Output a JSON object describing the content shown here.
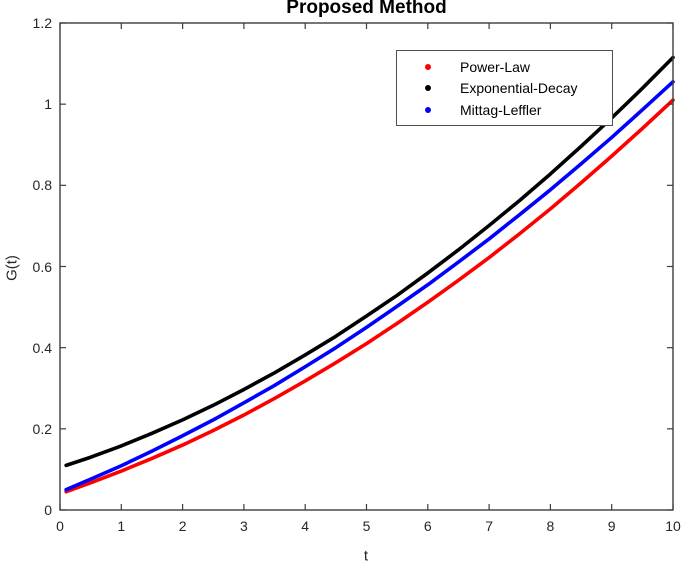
{
  "figure": {
    "background": "#ffffff"
  },
  "chart_data": {
    "type": "line",
    "title": "Proposed Method",
    "xlabel": "t",
    "ylabel": "G(t)",
    "xlim": [
      0,
      10
    ],
    "ylim": [
      0,
      1.2
    ],
    "xticks": [
      0,
      1,
      2,
      3,
      4,
      5,
      6,
      7,
      8,
      9,
      10
    ],
    "xtick_labels": [
      "0",
      "1",
      "2",
      "3",
      "4",
      "5",
      "6",
      "7",
      "8",
      "9",
      "10"
    ],
    "yticks": [
      0,
      0.2,
      0.4,
      0.6,
      0.8,
      1.0,
      1.2
    ],
    "ytick_labels": [
      "0",
      "0.2",
      "0.4",
      "0.6",
      "0.8",
      "1",
      "1.2"
    ],
    "grid": false,
    "box": true,
    "axis_color": "#3d3d3d",
    "legend": {
      "position": "upper-right-inside",
      "border_color": "#4f4f4f",
      "background": "#ffffff",
      "marker": "dot"
    },
    "x": [
      0.1,
      0.5,
      1,
      1.5,
      2,
      2.5,
      3,
      3.5,
      4,
      4.5,
      5,
      5.5,
      6,
      6.5,
      7,
      7.5,
      8,
      8.5,
      9,
      9.5,
      10
    ],
    "series": [
      {
        "name": "Power-Law",
        "color": "#ff0000",
        "values": [
          0.045,
          0.067,
          0.096,
          0.127,
          0.16,
          0.196,
          0.234,
          0.275,
          0.318,
          0.363,
          0.41,
          0.46,
          0.512,
          0.566,
          0.622,
          0.681,
          0.742,
          0.806,
          0.872,
          0.94,
          1.01
        ]
      },
      {
        "name": "Exponential-Decay",
        "color": "#000000",
        "values": [
          0.11,
          0.13,
          0.158,
          0.189,
          0.222,
          0.258,
          0.297,
          0.338,
          0.382,
          0.428,
          0.478,
          0.529,
          0.584,
          0.641,
          0.701,
          0.763,
          0.828,
          0.896,
          0.966,
          1.039,
          1.115
        ]
      },
      {
        "name": "Mittag-Leffler",
        "color": "#0000ff",
        "values": [
          0.05,
          0.076,
          0.109,
          0.145,
          0.183,
          0.222,
          0.264,
          0.307,
          0.353,
          0.4,
          0.45,
          0.502,
          0.555,
          0.611,
          0.668,
          0.728,
          0.789,
          0.853,
          0.918,
          0.986,
          1.055
        ]
      }
    ]
  }
}
